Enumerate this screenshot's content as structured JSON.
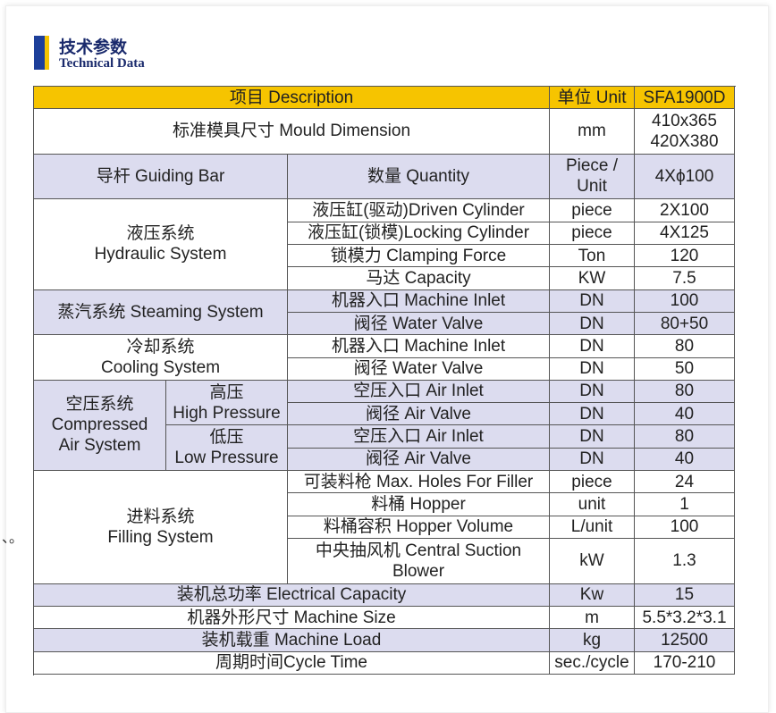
{
  "header": {
    "title": "技术参数",
    "subtitle": "Technical Data"
  },
  "side_fragment": "、。",
  "table": {
    "columns": [
      "项目 Description",
      "单位 Unit",
      "SFA1900D"
    ],
    "rows": [
      {
        "item": "标准模具尺寸 Mould Dimension",
        "unit": "mm",
        "value": "410x365\n420X380"
      },
      {
        "item": "导杆 Guiding Bar",
        "detail": "数量 Quantity",
        "unit": "Piece /\nUnit",
        "value": "4Xϕ100"
      },
      {
        "group": "液压系统\nHydraulic System",
        "items": [
          {
            "detail": "液压缸(驱动)Driven Cylinder",
            "unit": "piece",
            "value": "2X100"
          },
          {
            "detail": "液压缸(锁模)Locking Cylinder",
            "unit": "piece",
            "value": "4X125"
          },
          {
            "detail": "锁模力 Clamping Force",
            "unit": "Ton",
            "value": "120"
          },
          {
            "detail": "马达 Capacity",
            "unit": "KW",
            "value": "7.5"
          }
        ]
      },
      {
        "group": "蒸汽系统 Steaming System",
        "items": [
          {
            "detail": "机器入口 Machine Inlet",
            "unit": "DN",
            "value": "100"
          },
          {
            "detail": "阀径 Water Valve",
            "unit": "DN",
            "value": "80+50"
          }
        ]
      },
      {
        "group": "冷却系统\nCooling System",
        "items": [
          {
            "detail": "机器入口 Machine Inlet",
            "unit": "DN",
            "value": "80"
          },
          {
            "detail": "阀径 Water Valve",
            "unit": "DN",
            "value": "50"
          }
        ]
      },
      {
        "group": "空压系统\nCompressed\nAir System",
        "subgroups": [
          {
            "name": "高压\nHigh Pressure",
            "items": [
              {
                "detail": "空压入口 Air Inlet",
                "unit": "DN",
                "value": "80"
              },
              {
                "detail": "阀径 Air Valve",
                "unit": "DN",
                "value": "40"
              }
            ]
          },
          {
            "name": "低压\nLow Pressure",
            "items": [
              {
                "detail": "空压入口 Air Inlet",
                "unit": "DN",
                "value": "80"
              },
              {
                "detail": "阀径 Air Valve",
                "unit": "DN",
                "value": "40"
              }
            ]
          }
        ]
      },
      {
        "group": "进料系统\nFilling System",
        "items": [
          {
            "detail": "可装料枪 Max. Holes For Filler",
            "unit": "piece",
            "value": "24"
          },
          {
            "detail": "料桶 Hopper",
            "unit": "unit",
            "value": "1"
          },
          {
            "detail": "料桶容积 Hopper Volume",
            "unit": "L/unit",
            "value": "100"
          },
          {
            "detail": "中央抽风机  Central Suction\nBlower",
            "unit": "kW",
            "value": "1.3"
          }
        ]
      },
      {
        "item": "装机总功率  Electrical Capacity",
        "unit": "Kw",
        "value": "15"
      },
      {
        "item": "机器外形尺寸 Machine Size",
        "unit": "m",
        "value": "5.5*3.2*3.1"
      },
      {
        "item": "装机载重 Machine Load",
        "unit": "kg",
        "value": "12500"
      },
      {
        "item": "周期时间Cycle Time",
        "unit": "sec./cycle",
        "value": "170-210"
      }
    ]
  }
}
